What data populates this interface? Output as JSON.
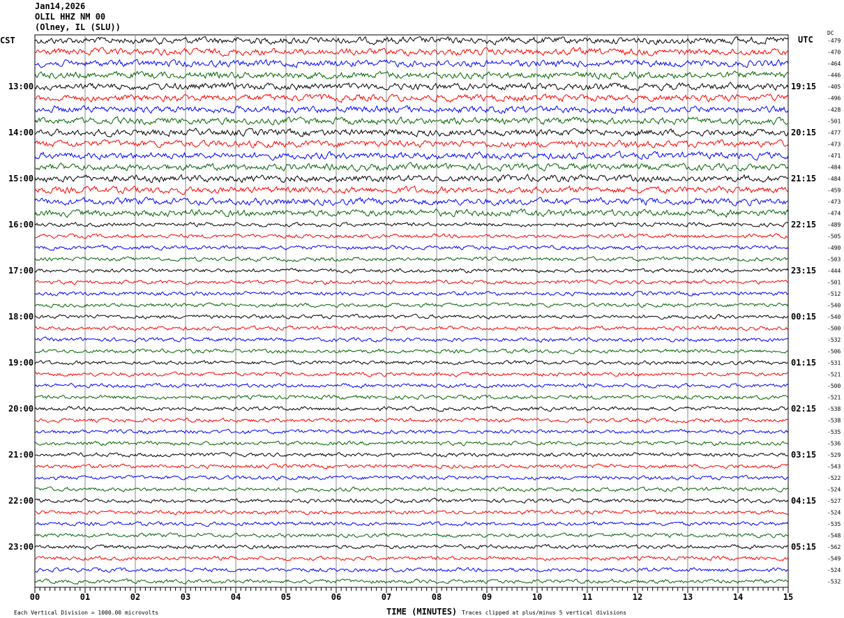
{
  "header": {
    "date": "Jan14,2026",
    "station": "OLIL HHZ NM 00",
    "location": "(Olney, IL (SLU))"
  },
  "left_timezone": "CST",
  "right_timezone": "UTC",
  "dc_header": "DC",
  "footer": {
    "scale_note": "Each Vertical Division = 1000.00 microvolts",
    "xlabel": "TIME (MINUTES)",
    "clip_note": "Traces clipped at plus/minus 5 vertical divisions"
  },
  "chart_data": {
    "type": "line",
    "title": "Jan14,2026 OLIL HHZ NM 00 (Olney, IL (SLU))",
    "xlabel": "TIME (MINUTES)",
    "xlim": [
      0,
      15
    ],
    "x_ticks": [
      "00",
      "01",
      "02",
      "03",
      "04",
      "05",
      "06",
      "07",
      "08",
      "09",
      "10",
      "11",
      "12",
      "13",
      "14",
      "15"
    ],
    "trace_colors": [
      "#000000",
      "#ff0000",
      "#0000ff",
      "#006400"
    ],
    "rows_per_hour": 4,
    "left_hour_labels": [
      "13:00",
      "14:00",
      "15:00",
      "16:00",
      "17:00",
      "18:00",
      "19:00",
      "20:00",
      "21:00",
      "22:00",
      "23:00"
    ],
    "right_hour_labels": [
      "19:15",
      "20:15",
      "21:15",
      "22:15",
      "23:15",
      "00:15",
      "01:15",
      "02:15",
      "03:15",
      "04:15",
      "05:15"
    ],
    "dc_offsets": [
      -479,
      -470,
      -464,
      -446,
      -405,
      -496,
      -428,
      -501,
      -477,
      -473,
      -471,
      -484,
      -484,
      -459,
      -473,
      -474,
      -489,
      -505,
      -490,
      -503,
      -444,
      -501,
      -512,
      -540,
      -540,
      -500,
      -532,
      -506,
      -531,
      -521,
      -500,
      -521,
      -538,
      -538,
      -535,
      -536,
      -529,
      -543,
      -522,
      -524,
      -527,
      -524,
      -535,
      -548,
      -562,
      -549,
      -524,
      -532
    ],
    "grid": true
  }
}
